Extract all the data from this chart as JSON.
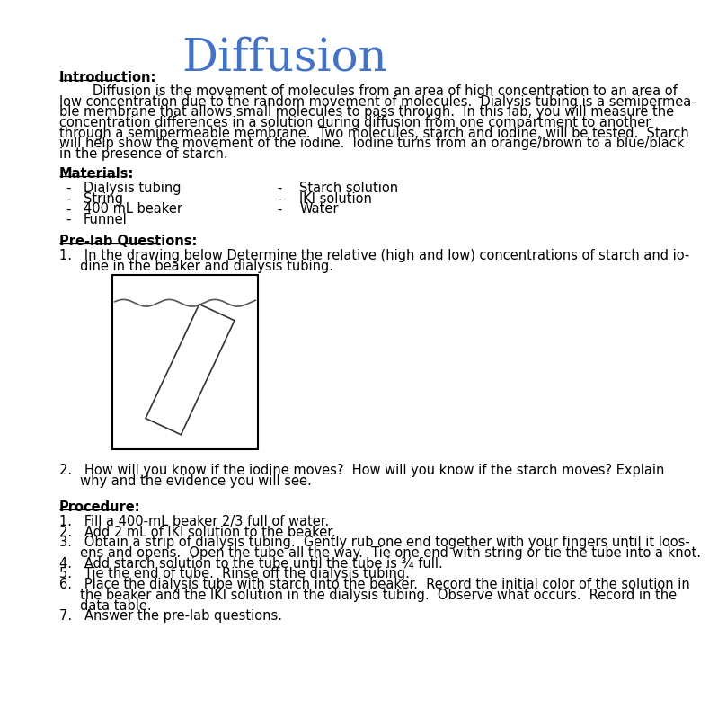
{
  "title": "Diffusion",
  "title_color": "#4472C4",
  "title_fontsize": 36,
  "bg_color": "#ffffff",
  "text_color": "#000000",
  "body_fontsize": 10.5,
  "intro_header": "Introduction:",
  "intro_text": "        Diffusion is the movement of molecules from an area of high concentration to an area of\nlow concentration due to the random movement of molecules.  Dialysis tubing is a semipermea-\nble membrane that allows small molecules to pass through.  In this lab, you will measure the\nconcentration differences in a solution during diffusion from one compartment to another\nthrough a semipermeable membrane.  Two molecules, starch and iodine, will be tested.  Starch\nwill help show the movement of the iodine.  Iodine turns from an orange/brown to a blue/black\nin the presence of starch.",
  "materials_header": "Materials:",
  "materials_col1": [
    "Dialysis tubing",
    "String",
    "400 mL beaker",
    "Funnel"
  ],
  "materials_col2": [
    "Starch solution",
    "IKI solution",
    "Water"
  ],
  "prelab_header": "Pre-lab Questions:",
  "prelab_q1_a": "1.   In the drawing below Determine the relative (high and low) concentrations of starch and io-",
  "prelab_q1_b": "     dine in the beaker and dialysis tubing.",
  "prelab_q2_a": "2.   How will you know if the iodine moves?  How will you know if the starch moves? Explain",
  "prelab_q2_b": "     why and the evidence you will see.",
  "procedure_header": "Procedure:",
  "procedure_steps": [
    [
      "1.   Fill a 400-mL beaker 2/3 full of water."
    ],
    [
      "2.   Add 2 mL of IKI solution to the beaker."
    ],
    [
      "3.   Obtain a strip of dialysis tubing.  Gently rub one end together with your fingers until it loos-",
      "     ens and opens.  Open the tube all the way.  Tie one end with string or tie the tube into a knot."
    ],
    [
      "4.   Add starch solution to the tube until the tube is ¾ full."
    ],
    [
      "5.   Tie the end of tube.  Rinse off the dialysis tubing."
    ],
    [
      "6.   Place the dialysis tube with starch into the beaker.  Record the initial color of the solution in",
      "     the beaker and the IKI solution in the dialysis tubing.  Observe what occurs.  Record in the",
      "     data table."
    ],
    [
      "7.   Answer the pre-lab questions."
    ]
  ]
}
